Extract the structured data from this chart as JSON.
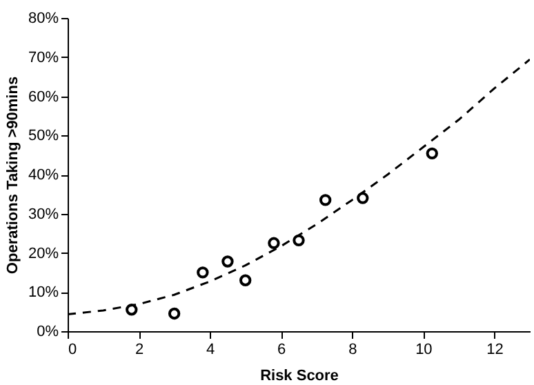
{
  "chart_data": {
    "type": "scatter",
    "xlabel": "Risk Score",
    "ylabel": "Operations Taking >90mins",
    "xlim": [
      0,
      13
    ],
    "ylim": [
      0,
      80
    ],
    "xticks": [
      0,
      2,
      4,
      6,
      8,
      10,
      12
    ],
    "yticks": [
      {
        "value": 0,
        "label": "0%"
      },
      {
        "value": 10,
        "label": "10%"
      },
      {
        "value": 20,
        "label": "20%"
      },
      {
        "value": 30,
        "label": "30%"
      },
      {
        "value": 40,
        "label": "40%"
      },
      {
        "value": 50,
        "label": "50%"
      },
      {
        "value": 60,
        "label": "60%"
      },
      {
        "value": 70,
        "label": "70%"
      },
      {
        "value": 80,
        "label": "80%"
      }
    ],
    "grid": false,
    "series": [
      {
        "color": "#000000",
        "marker": "circle",
        "x": [
          1.8,
          3,
          3.8,
          4.5,
          5,
          5.8,
          6.5,
          7.25,
          8.3,
          10.25
        ],
        "values": [
          5.5,
          4.5,
          15,
          17.8,
          13,
          22.5,
          23.2,
          33.5,
          34,
          45.4
        ]
      },
      {
        "type": "line",
        "color": "#000000",
        "line_style": "dashed",
        "marker": "none",
        "x": [
          0,
          1,
          2,
          3,
          4,
          5,
          6,
          7,
          8,
          9,
          10,
          11,
          12,
          13
        ],
        "values": [
          4.3,
          5.3,
          6.9,
          9.3,
          12.7,
          16.8,
          21.7,
          27.3,
          33.5,
          40,
          47,
          54,
          62,
          69.4
        ]
      }
    ]
  }
}
